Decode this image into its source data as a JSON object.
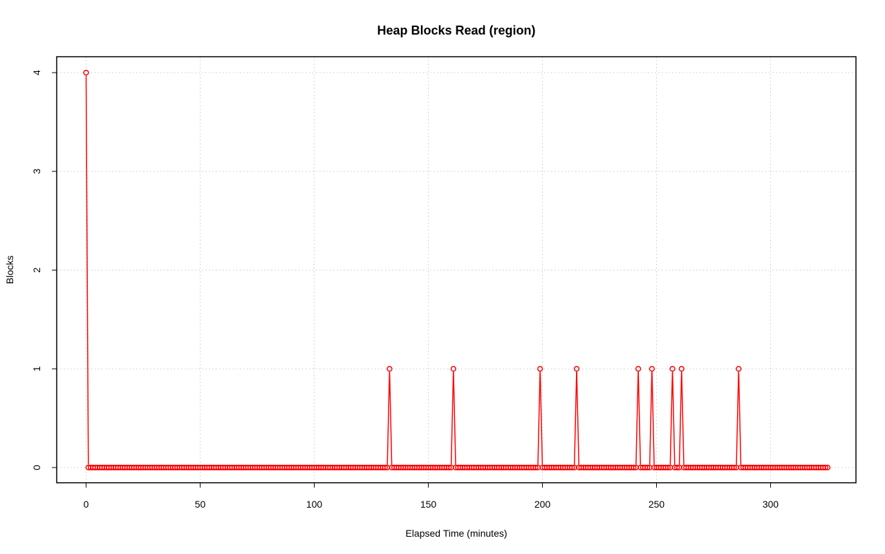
{
  "chart_data": {
    "type": "line",
    "title": "Heap Blocks Read (region)",
    "xlabel": "Elapsed Time (minutes)",
    "ylabel": "Blocks",
    "xlim": [
      0,
      325
    ],
    "ylim": [
      0,
      4
    ],
    "xticks": [
      0,
      50,
      100,
      150,
      200,
      250,
      300
    ],
    "yticks": [
      0,
      1,
      2,
      3,
      4
    ],
    "grid": true,
    "series_color": "#ff0000",
    "markers": "open-circle",
    "sample_interval_minutes": 1,
    "series": [
      {
        "baseline": 0,
        "points": [
          {
            "x": 0,
            "y": 4
          },
          {
            "x": 133,
            "y": 1
          },
          {
            "x": 161,
            "y": 1
          },
          {
            "x": 199,
            "y": 1
          },
          {
            "x": 215,
            "y": 1
          },
          {
            "x": 242,
            "y": 1
          },
          {
            "x": 248,
            "y": 1
          },
          {
            "x": 257,
            "y": 1
          },
          {
            "x": 261,
            "y": 1
          },
          {
            "x": 286,
            "y": 1
          }
        ]
      }
    ]
  }
}
